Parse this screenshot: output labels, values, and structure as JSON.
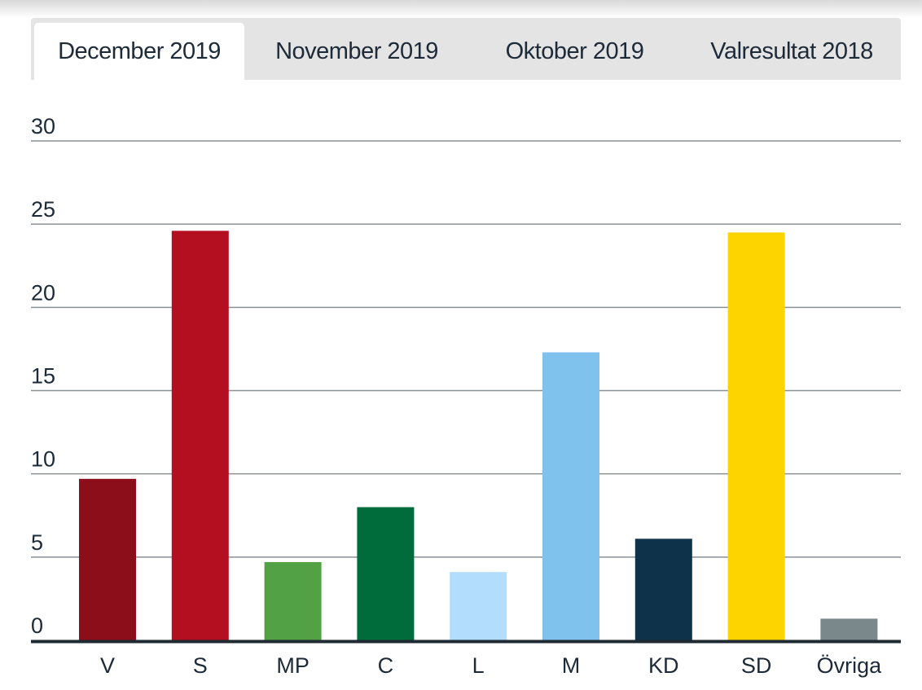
{
  "tabs": [
    {
      "label": "December 2019",
      "active": true
    },
    {
      "label": "November 2019",
      "active": false
    },
    {
      "label": "Oktober 2019",
      "active": false
    },
    {
      "label": "Valresultat 2018",
      "active": false
    }
  ],
  "chart_data": {
    "type": "bar",
    "title": "",
    "xlabel": "",
    "ylabel": "",
    "ylim": [
      0,
      30
    ],
    "yticks": [
      0,
      5,
      10,
      15,
      20,
      25,
      30
    ],
    "grid": true,
    "categories": [
      "V",
      "S",
      "MP",
      "C",
      "L",
      "M",
      "KD",
      "SD",
      "Övriga"
    ],
    "values": [
      9.7,
      24.6,
      4.7,
      8.0,
      4.1,
      17.3,
      6.1,
      24.5,
      1.3
    ],
    "colors": [
      "#8b0e1a",
      "#b30f20",
      "#53a145",
      "#006b3b",
      "#b3ddfc",
      "#7fc2ee",
      "#0e324a",
      "#fed400",
      "#7a878b"
    ]
  }
}
